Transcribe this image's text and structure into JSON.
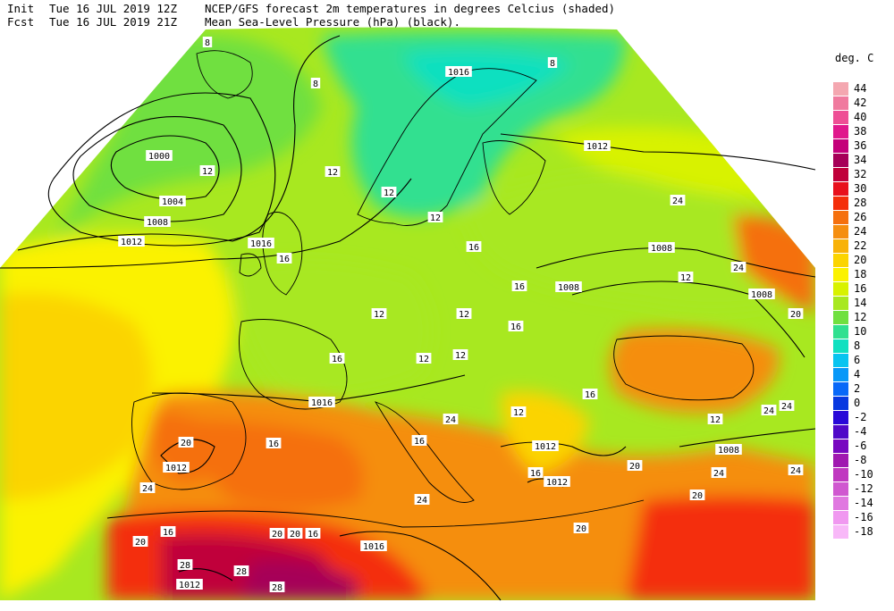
{
  "header": {
    "init_label": "Init",
    "init_time": "Tue 16 JUL 2019 12Z",
    "fcst_label": "Fcst",
    "fcst_time": "Tue 16 JUL 2019 21Z",
    "title_line1": "NCEP/GFS forecast 2m temperatures in degrees Celcius (shaded)",
    "title_line2": "Mean Sea-Level Pressure (hPa) (black)."
  },
  "legend": {
    "title": "deg. C",
    "entries": [
      {
        "label": "44",
        "color": "#f4a7b0"
      },
      {
        "label": "42",
        "color": "#f07a9e"
      },
      {
        "label": "40",
        "color": "#ee4f95"
      },
      {
        "label": "38",
        "color": "#e0188c"
      },
      {
        "label": "36",
        "color": "#c4007a"
      },
      {
        "label": "34",
        "color": "#a60058"
      },
      {
        "label": "32",
        "color": "#c0003a"
      },
      {
        "label": "30",
        "color": "#e8101c"
      },
      {
        "label": "28",
        "color": "#f42e0a"
      },
      {
        "label": "26",
        "color": "#f5700e"
      },
      {
        "label": "24",
        "color": "#f58e10"
      },
      {
        "label": "22",
        "color": "#f8b208"
      },
      {
        "label": "20",
        "color": "#fbd400"
      },
      {
        "label": "18",
        "color": "#fbf200"
      },
      {
        "label": "16",
        "color": "#d8f200"
      },
      {
        "label": "14",
        "color": "#a8e820"
      },
      {
        "label": "12",
        "color": "#70e040"
      },
      {
        "label": "10",
        "color": "#30e090"
      },
      {
        "label": "8",
        "color": "#10e0c0"
      },
      {
        "label": "6",
        "color": "#08c4f0"
      },
      {
        "label": "4",
        "color": "#0898f8"
      },
      {
        "label": "2",
        "color": "#0868f8"
      },
      {
        "label": "0",
        "color": "#0838e0"
      },
      {
        "label": "-2",
        "color": "#2808d8"
      },
      {
        "label": "-4",
        "color": "#5008c8"
      },
      {
        "label": "-6",
        "color": "#7808c0"
      },
      {
        "label": "-8",
        "color": "#a018b0"
      },
      {
        "label": "-10",
        "color": "#c038c0"
      },
      {
        "label": "-12",
        "color": "#d058d0"
      },
      {
        "label": "-14",
        "color": "#e078e0"
      },
      {
        "label": "-16",
        "color": "#f098f0"
      },
      {
        "label": "-18",
        "color": "#f8b8f8"
      }
    ]
  },
  "isobar_labels": [
    "1000",
    "1004",
    "1008",
    "1012",
    "1016",
    "1016",
    "1012",
    "1008",
    "1008",
    "1016",
    "1012",
    "1012",
    "1008",
    "1016",
    "1012",
    "1008",
    "1012"
  ],
  "temp_labels": [
    "8",
    "8",
    "8",
    "12",
    "12",
    "12",
    "12",
    "16",
    "16",
    "12",
    "12",
    "16",
    "16",
    "16",
    "12",
    "12",
    "12",
    "12",
    "16",
    "12",
    "16",
    "16",
    "20",
    "20",
    "24",
    "24",
    "20",
    "24",
    "24",
    "16",
    "20",
    "20",
    "20",
    "16",
    "16",
    "24",
    "24",
    "28",
    "28",
    "24",
    "20",
    "24",
    "24",
    "20",
    "28"
  ],
  "colors": {
    "background": "#ffffff",
    "isobar": "#000000",
    "coast": "#000000",
    "label_box": "#ffffff"
  }
}
